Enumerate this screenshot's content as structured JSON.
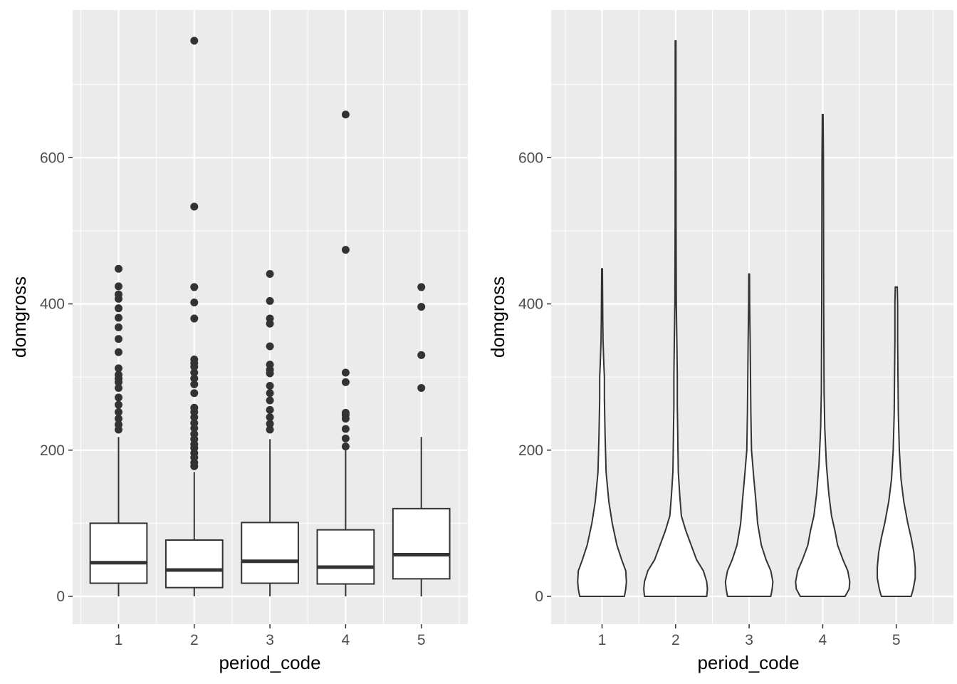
{
  "chart_data": [
    {
      "type": "box",
      "xlabel": "period_code",
      "ylabel": "domgross",
      "categories": [
        "1",
        "2",
        "3",
        "4",
        "5"
      ],
      "yticks": [
        0,
        200,
        400,
        600
      ],
      "ylim": [
        -38,
        802
      ],
      "grid": true,
      "boxes": [
        {
          "category": "1",
          "whisker_low": 0,
          "q1": 18,
          "median": 46,
          "q3": 100,
          "whisker_high": 218,
          "outliers": [
            228,
            235,
            243,
            252,
            262,
            272,
            285,
            293,
            298,
            303,
            312,
            334,
            352,
            368,
            381,
            394,
            407,
            413,
            424,
            448
          ]
        },
        {
          "category": "2",
          "whisker_low": 0,
          "q1": 12,
          "median": 36,
          "q3": 77,
          "whisker_high": 170,
          "outliers": [
            178,
            183,
            190,
            196,
            203,
            208,
            215,
            222,
            230,
            237,
            245,
            252,
            258,
            278,
            290,
            298,
            306,
            314,
            319,
            324,
            380,
            402,
            423,
            533,
            760
          ]
        },
        {
          "category": "3",
          "whisker_low": 0,
          "q1": 18,
          "median": 48,
          "q3": 101,
          "whisker_high": 215,
          "outliers": [
            228,
            236,
            245,
            255,
            268,
            278,
            288,
            305,
            310,
            317,
            342,
            373,
            380,
            404,
            441
          ]
        },
        {
          "category": "4",
          "whisker_low": 0,
          "q1": 17,
          "median": 40,
          "q3": 91,
          "whisker_high": 200,
          "outliers": [
            205,
            216,
            229,
            243,
            248,
            251,
            293,
            306,
            474,
            659
          ]
        },
        {
          "category": "5",
          "whisker_low": 0,
          "q1": 24,
          "median": 57,
          "q3": 120,
          "whisker_high": 218,
          "outliers": [
            285,
            330,
            396,
            423
          ]
        }
      ]
    },
    {
      "type": "violin",
      "xlabel": "period_code",
      "ylabel": "domgross",
      "categories": [
        "1",
        "2",
        "3",
        "4",
        "5"
      ],
      "yticks": [
        0,
        200,
        400,
        600
      ],
      "ylim": [
        -38,
        802
      ],
      "grid": true,
      "violins": [
        {
          "category": "1",
          "min": 0,
          "max": 448,
          "profile": [
            [
              0,
              0.66
            ],
            [
              10,
              0.7
            ],
            [
              20,
              0.72
            ],
            [
              35,
              0.7
            ],
            [
              50,
              0.58
            ],
            [
              70,
              0.44
            ],
            [
              100,
              0.3
            ],
            [
              130,
              0.2
            ],
            [
              170,
              0.12
            ],
            [
              220,
              0.09
            ],
            [
              270,
              0.07
            ],
            [
              300,
              0.07
            ],
            [
              320,
              0.05
            ],
            [
              350,
              0.03
            ],
            [
              380,
              0.02
            ],
            [
              420,
              0.015
            ],
            [
              448,
              0.01
            ]
          ]
        },
        {
          "category": "2",
          "min": 0,
          "max": 760,
          "profile": [
            [
              0,
              0.92
            ],
            [
              10,
              0.94
            ],
            [
              20,
              0.92
            ],
            [
              35,
              0.82
            ],
            [
              50,
              0.62
            ],
            [
              70,
              0.46
            ],
            [
              90,
              0.3
            ],
            [
              110,
              0.17
            ],
            [
              140,
              0.12
            ],
            [
              170,
              0.08
            ],
            [
              200,
              0.07
            ],
            [
              230,
              0.06
            ],
            [
              260,
              0.05
            ],
            [
              300,
              0.05
            ],
            [
              340,
              0.04
            ],
            [
              400,
              0.02
            ],
            [
              500,
              0.015
            ],
            [
              600,
              0.012
            ],
            [
              760,
              0.01
            ]
          ]
        },
        {
          "category": "3",
          "min": 0,
          "max": 441,
          "profile": [
            [
              0,
              0.64
            ],
            [
              10,
              0.68
            ],
            [
              20,
              0.7
            ],
            [
              35,
              0.64
            ],
            [
              50,
              0.5
            ],
            [
              70,
              0.36
            ],
            [
              100,
              0.25
            ],
            [
              130,
              0.2
            ],
            [
              160,
              0.14
            ],
            [
              200,
              0.07
            ],
            [
              250,
              0.05
            ],
            [
              300,
              0.04
            ],
            [
              350,
              0.03
            ],
            [
              400,
              0.015
            ],
            [
              441,
              0.01
            ]
          ]
        },
        {
          "category": "4",
          "min": 0,
          "max": 659,
          "profile": [
            [
              0,
              0.66
            ],
            [
              10,
              0.78
            ],
            [
              20,
              0.8
            ],
            [
              35,
              0.74
            ],
            [
              50,
              0.6
            ],
            [
              70,
              0.44
            ],
            [
              90,
              0.36
            ],
            [
              110,
              0.26
            ],
            [
              140,
              0.18
            ],
            [
              180,
              0.11
            ],
            [
              230,
              0.06
            ],
            [
              280,
              0.04
            ],
            [
              330,
              0.035
            ],
            [
              400,
              0.03
            ],
            [
              500,
              0.025
            ],
            [
              600,
              0.02
            ],
            [
              659,
              0.01
            ]
          ]
        },
        {
          "category": "5",
          "min": 0,
          "max": 423,
          "profile": [
            [
              0,
              0.44
            ],
            [
              10,
              0.5
            ],
            [
              25,
              0.56
            ],
            [
              40,
              0.56
            ],
            [
              60,
              0.52
            ],
            [
              80,
              0.44
            ],
            [
              100,
              0.34
            ],
            [
              130,
              0.22
            ],
            [
              160,
              0.14
            ],
            [
              200,
              0.09
            ],
            [
              250,
              0.06
            ],
            [
              300,
              0.05
            ],
            [
              350,
              0.04
            ],
            [
              400,
              0.04
            ],
            [
              423,
              0.03
            ]
          ]
        }
      ]
    }
  ]
}
